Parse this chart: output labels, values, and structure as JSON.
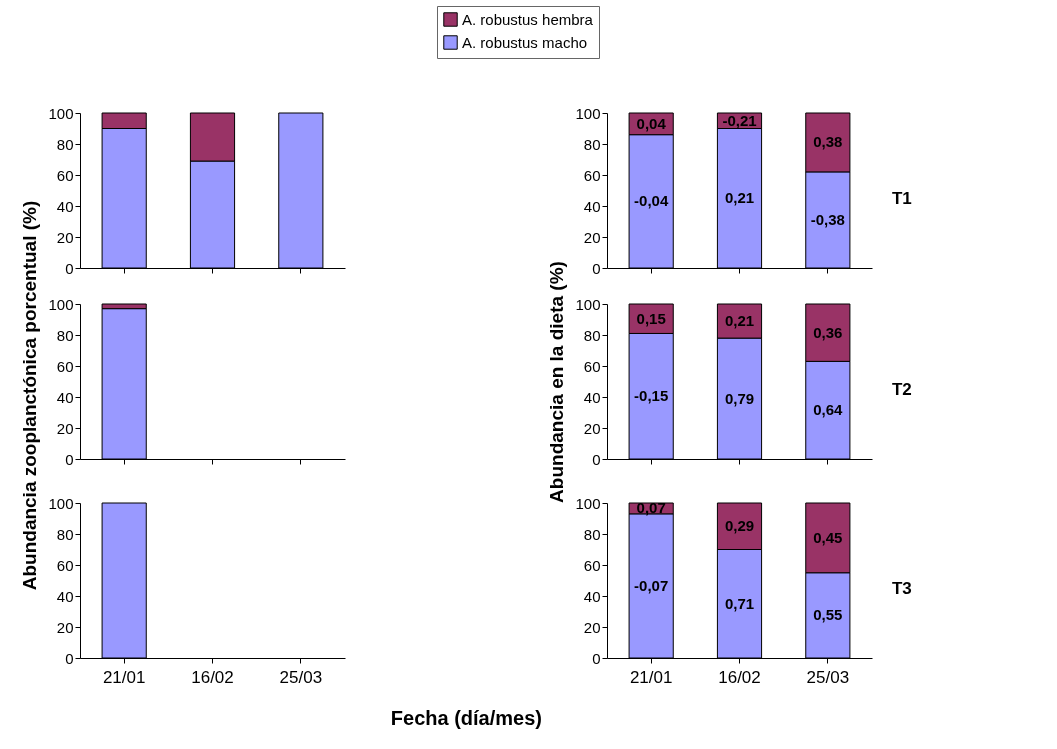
{
  "chart_data": [
    {
      "type": "bar",
      "stacked": true,
      "categories": [
        "21/01",
        "16/02",
        "25/03"
      ],
      "ylim": [
        0,
        100
      ],
      "yticks": [
        0,
        20,
        40,
        60,
        80,
        100
      ],
      "tick_labels": "y",
      "legend": "top",
      "series": [
        {
          "name": "A. robustus macho",
          "color": "#9999ff",
          "values": [
            90,
            69,
            100
          ]
        },
        {
          "name": "A. robustus hembra",
          "color": "#993366",
          "values": [
            10,
            31,
            0
          ]
        }
      ]
    },
    {
      "type": "bar",
      "stacked": true,
      "categories": [
        "21/01",
        "16/02",
        "25/03"
      ],
      "ylim": [
        0,
        100
      ],
      "yticks": [
        0,
        20,
        40,
        60,
        80,
        100
      ],
      "tick_labels": "y",
      "annotations": [
        "T1",
        "-0,04",
        "0,21",
        "-0,38",
        {
          "text": "0,04",
          "x": "21/01",
          "y": 100
        },
        {
          "text": "-0,21",
          "x": "16/02",
          "y": 100
        },
        {
          "text": "0,38",
          "x": "25/03",
          "y": 100
        }
      ],
      "series": [
        {
          "color": "#9999ff",
          "values": [
            86,
            90,
            62
          ]
        },
        {
          "color": "#993366",
          "values": [
            14,
            10,
            38
          ]
        }
      ]
    },
    {
      "type": "bar",
      "stacked": true,
      "categories": [
        "21/01",
        "16/02",
        "25/03"
      ],
      "ylim": [
        0,
        100
      ],
      "yticks": [
        0,
        20,
        40,
        60,
        80,
        100
      ],
      "tick_labels": "y",
      "ylabel": "Abundancia zooplanctónica porcentual (%)",
      "series": [
        {
          "color": "#9999ff",
          "values": [
            97,
            null,
            null
          ]
        },
        {
          "color": "#993366",
          "values": [
            3,
            null,
            null
          ]
        }
      ]
    },
    {
      "type": "bar",
      "stacked": true,
      "categories": [
        "21/01",
        "16/02",
        "25/03"
      ],
      "ylim": [
        0,
        100
      ],
      "yticks": [
        0,
        20,
        40,
        60,
        80,
        100
      ],
      "tick_labels": "y",
      "ylabel": "Abundancia en la dieta (%)",
      "annotations": [
        "T2",
        "-0,15",
        "0,79",
        "0,64",
        {
          "text": "0,15",
          "x": "21/01",
          "y": 100
        },
        {
          "text": "0,21",
          "x": "16/02",
          "y": 100
        },
        {
          "text": "0,36",
          "x": "25/03",
          "y": 100
        }
      ],
      "series": [
        {
          "color": "#9999ff",
          "values": [
            81,
            78,
            63
          ]
        },
        {
          "color": "#993366",
          "values": [
            19,
            22,
            37
          ]
        }
      ]
    },
    {
      "type": "bar",
      "stacked": true,
      "categories": [
        "21/01",
        "16/02",
        "25/03"
      ],
      "ylim": [
        0,
        100
      ],
      "yticks": [
        0,
        20,
        40,
        60,
        80,
        100
      ],
      "series": [
        {
          "color": "#9999ff",
          "values": [
            100,
            null,
            null
          ]
        },
        {
          "color": "#993366",
          "values": [
            0,
            null,
            null
          ]
        }
      ]
    },
    {
      "type": "bar",
      "stacked": true,
      "categories": [
        "21/01",
        "16/02",
        "25/03"
      ],
      "ylim": [
        0,
        100
      ],
      "yticks": [
        0,
        20,
        40,
        60,
        80,
        100
      ],
      "xlabel": "Fecha (día/mes)",
      "annotations": [
        "T3",
        "-0,07",
        "0,71",
        "0,55",
        {
          "text": "0,07",
          "x": "21/01",
          "y": 100
        },
        {
          "text": "0,29",
          "x": "16/02",
          "y": 100
        },
        {
          "text": "0,45",
          "x": "25/03",
          "y": 100
        }
      ],
      "series": [
        {
          "color": "#9999ff",
          "values": [
            93,
            70,
            55
          ]
        },
        {
          "color": "#993366",
          "values": [
            7,
            30,
            45
          ]
        }
      ]
    }
  ]
}
